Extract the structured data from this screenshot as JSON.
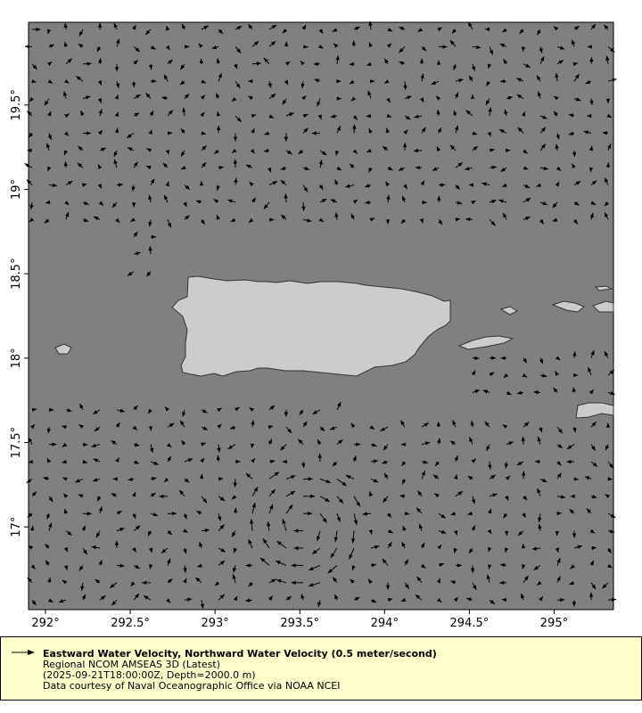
{
  "chart_data": {
    "type": "vector-map",
    "x_ticks": [
      "292°",
      "292.5°",
      "293°",
      "293.5°",
      "294°",
      "294.5°",
      "295°"
    ],
    "y_ticks": [
      "19.5°",
      "19°",
      "18.5°",
      "18°",
      "17.5°",
      "17°"
    ],
    "xlim": [
      291.9,
      295.35
    ],
    "ylim": [
      16.51,
      19.99
    ],
    "grid": false,
    "land_color": "#cccccc",
    "ocean_color": "#808080",
    "vector_color": "#000000",
    "reference_vector": "0.5 meter/second"
  },
  "legend": {
    "title": "Eastward Water Velocity, Northward Water Velocity (0.5 meter/second)",
    "line2": "Regional NCOM AMSEAS 3D (Latest)",
    "line3": "(2025-09-21T18:00:00Z, Depth=2000.0 m)",
    "line4": "Data courtesy of Naval Oceanographic Office via NOAA NCEI",
    "background": "#ffffcc"
  }
}
